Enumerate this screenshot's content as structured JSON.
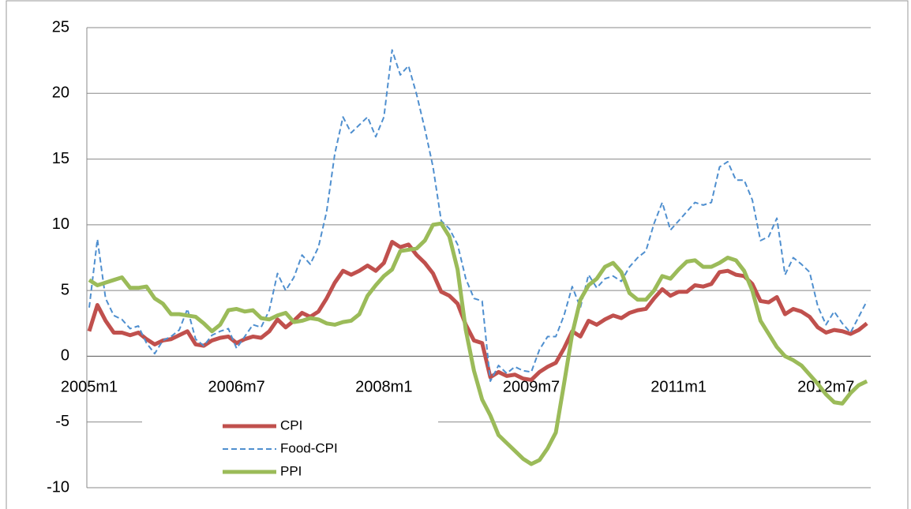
{
  "chart_data": {
    "type": "line",
    "categories": [
      "2005m1",
      null,
      null,
      null,
      null,
      null,
      null,
      null,
      null,
      null,
      null,
      null,
      null,
      null,
      null,
      null,
      null,
      null,
      "2006m7",
      null,
      null,
      null,
      null,
      null,
      null,
      null,
      null,
      null,
      null,
      null,
      null,
      null,
      null,
      null,
      null,
      null,
      "2008m1",
      null,
      null,
      null,
      null,
      null,
      null,
      null,
      null,
      null,
      null,
      null,
      null,
      null,
      null,
      null,
      null,
      null,
      "2009m7",
      null,
      null,
      null,
      null,
      null,
      null,
      null,
      null,
      null,
      null,
      null,
      null,
      null,
      null,
      null,
      null,
      null,
      "2011m1",
      null,
      null,
      null,
      null,
      null,
      null,
      null,
      null,
      null,
      null,
      null,
      null,
      null,
      null,
      null,
      null,
      null,
      "2012m7",
      null,
      null,
      null,
      null,
      null
    ],
    "series": [
      {
        "name": "CPI",
        "color": "#c0504d",
        "dash": false,
        "width": 5,
        "values": [
          1.9,
          3.9,
          2.7,
          1.8,
          1.8,
          1.6,
          1.8,
          1.3,
          0.9,
          1.2,
          1.3,
          1.6,
          1.9,
          0.9,
          0.8,
          1.2,
          1.4,
          1.5,
          1.0,
          1.3,
          1.5,
          1.4,
          1.9,
          2.8,
          2.2,
          2.7,
          3.3,
          3.0,
          3.4,
          4.4,
          5.6,
          6.5,
          6.2,
          6.5,
          6.9,
          6.5,
          7.1,
          8.7,
          8.3,
          8.5,
          7.7,
          7.1,
          6.3,
          4.9,
          4.6,
          4.0,
          2.4,
          1.2,
          1.0,
          -1.6,
          -1.2,
          -1.5,
          -1.4,
          -1.7,
          -1.8,
          -1.2,
          -0.8,
          -0.5,
          0.6,
          1.9,
          1.5,
          2.7,
          2.4,
          2.8,
          3.1,
          2.9,
          3.3,
          3.5,
          3.6,
          4.4,
          5.1,
          4.6,
          4.9,
          4.9,
          5.4,
          5.3,
          5.5,
          6.4,
          6.5,
          6.2,
          6.1,
          5.5,
          4.2,
          4.1,
          4.5,
          3.2,
          3.6,
          3.4,
          3.0,
          2.2,
          1.8,
          2.0,
          1.9,
          1.7,
          2.0,
          2.5
        ]
      },
      {
        "name": "Food-CPI",
        "color": "#4f8fcf",
        "dash": true,
        "width": 2,
        "values": [
          3.7,
          8.9,
          4.4,
          3.1,
          2.8,
          2.1,
          2.3,
          1.0,
          0.2,
          1.2,
          1.5,
          2.0,
          3.6,
          1.3,
          0.8,
          1.6,
          1.9,
          2.1,
          0.6,
          1.5,
          2.4,
          2.2,
          3.5,
          6.3,
          5.0,
          6.0,
          7.7,
          7.0,
          8.3,
          11.0,
          15.4,
          18.2,
          17.0,
          17.6,
          18.2,
          16.7,
          18.2,
          23.3,
          21.4,
          22.1,
          19.9,
          17.3,
          14.4,
          10.3,
          9.7,
          8.5,
          5.9,
          4.4,
          4.2,
          -1.9,
          -0.7,
          -1.3,
          -0.8,
          -1.1,
          -1.2,
          0.5,
          1.5,
          1.5,
          3.1,
          5.3,
          3.7,
          6.2,
          5.2,
          5.9,
          6.1,
          5.7,
          6.8,
          7.5,
          8.0,
          10.1,
          11.7,
          9.6,
          10.3,
          11.0,
          11.7,
          11.5,
          11.7,
          14.4,
          14.8,
          13.4,
          13.4,
          11.9,
          8.8,
          9.1,
          10.5,
          6.2,
          7.5,
          7.0,
          6.4,
          3.8,
          2.4,
          3.4,
          2.5,
          1.8,
          3.0,
          4.2
        ]
      },
      {
        "name": "PPI",
        "color": "#9bbb59",
        "dash": false,
        "width": 5,
        "values": [
          5.8,
          5.4,
          5.6,
          5.8,
          6.0,
          5.2,
          5.2,
          5.3,
          4.4,
          4.0,
          3.2,
          3.2,
          3.1,
          3.0,
          2.5,
          1.9,
          2.4,
          3.5,
          3.6,
          3.4,
          3.5,
          2.9,
          2.8,
          3.1,
          3.3,
          2.6,
          2.7,
          2.9,
          2.8,
          2.5,
          2.4,
          2.6,
          2.7,
          3.2,
          4.6,
          5.4,
          6.1,
          6.6,
          8.0,
          8.1,
          8.2,
          8.8,
          10.0,
          10.1,
          9.1,
          6.6,
          2.0,
          -1.1,
          -3.3,
          -4.5,
          -6.0,
          -6.6,
          -7.2,
          -7.8,
          -8.2,
          -7.9,
          -7.0,
          -5.8,
          -2.1,
          1.7,
          4.3,
          5.4,
          5.9,
          6.8,
          7.1,
          6.4,
          4.8,
          4.3,
          4.3,
          5.0,
          6.1,
          5.9,
          6.6,
          7.2,
          7.3,
          6.8,
          6.8,
          7.1,
          7.5,
          7.3,
          6.5,
          5.0,
          2.7,
          1.7,
          0.7,
          0.0,
          -0.3,
          -0.7,
          -1.4,
          -2.1,
          -2.9,
          -3.5,
          -3.6,
          -2.8,
          -2.2,
          -1.9
        ]
      }
    ],
    "ylim": [
      -10,
      25
    ],
    "yticks": [
      -10,
      -5,
      0,
      5,
      10,
      15,
      20,
      25
    ],
    "grid": true,
    "legend": "bottom"
  }
}
